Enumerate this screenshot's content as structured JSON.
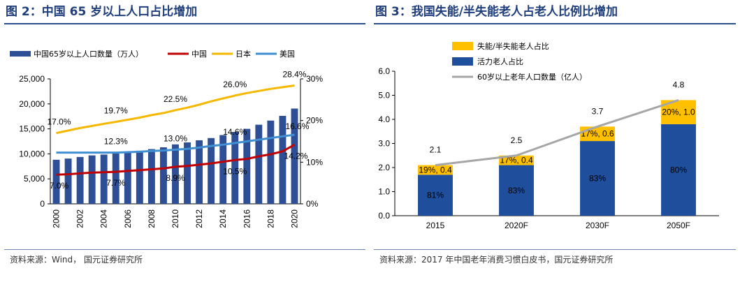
{
  "left_panel": {
    "title": "图 2：中国 65 岁以上人口占比增加",
    "source": "资料来源：Wind，   国元证券研究所",
    "chart_data": {
      "type": "bar+line",
      "legend": [
        {
          "name": "中国65岁以上人口数量（万人）",
          "kind": "bar",
          "color": "#2e4f96"
        },
        {
          "name": "中国",
          "kind": "line",
          "color": "#c00000"
        },
        {
          "name": "日本",
          "kind": "line",
          "color": "#f5b800"
        },
        {
          "name": "美国",
          "kind": "line",
          "color": "#3f8fd2"
        }
      ],
      "x": [
        2000,
        2001,
        2002,
        2003,
        2004,
        2005,
        2006,
        2007,
        2008,
        2009,
        2010,
        2011,
        2012,
        2013,
        2014,
        2015,
        2016,
        2017,
        2018,
        2019,
        2020
      ],
      "x_tick_labels": [
        "2000",
        "2002",
        "2004",
        "2006",
        "2008",
        "2010",
        "2012",
        "2014",
        "2016",
        "2018",
        "2020"
      ],
      "bar_values": [
        8821,
        9062,
        9377,
        9692,
        9857,
        10055,
        10419,
        10636,
        10956,
        11307,
        11894,
        12288,
        12714,
        13161,
        13755,
        14386,
        15003,
        15831,
        16658,
        17603,
        19064
      ],
      "y_left": {
        "ticks": [
          "0",
          "5,000",
          "10,000",
          "15,000",
          "20,000",
          "25,000"
        ],
        "range": [
          0,
          25000
        ]
      },
      "y_right": {
        "ticks": [
          "0%",
          "10%",
          "20%",
          "30%"
        ],
        "range": [
          0,
          30
        ]
      },
      "series": [
        {
          "name": "中国",
          "color": "#c00000",
          "values": [
            7.0,
            7.1,
            7.3,
            7.5,
            7.6,
            7.7,
            7.9,
            8.1,
            8.3,
            8.5,
            8.9,
            9.1,
            9.4,
            9.7,
            10.1,
            10.5,
            10.8,
            11.4,
            11.9,
            12.6,
            14.2
          ],
          "labels": [
            {
              "i": 0,
              "text": "7.0%"
            },
            {
              "i": 5,
              "text": "7.7%"
            },
            {
              "i": 10,
              "text": "8.9%"
            },
            {
              "i": 15,
              "text": "10.5%"
            },
            {
              "i": 20,
              "text": "14.2%"
            }
          ]
        },
        {
          "name": "日本",
          "color": "#f5b800",
          "values": [
            17.0,
            17.6,
            18.2,
            18.7,
            19.2,
            19.7,
            20.2,
            20.7,
            21.3,
            21.8,
            22.5,
            23.1,
            23.8,
            24.6,
            25.3,
            26.0,
            26.6,
            27.1,
            27.6,
            28.0,
            28.4
          ],
          "labels": [
            {
              "i": 0,
              "text": "17.0%"
            },
            {
              "i": 5,
              "text": "19.7%"
            },
            {
              "i": 10,
              "text": "22.5%"
            },
            {
              "i": 15,
              "text": "26.0%"
            },
            {
              "i": 20,
              "text": "28.4%"
            }
          ]
        },
        {
          "name": "美国",
          "color": "#3f8fd2",
          "values": [
            12.3,
            12.3,
            12.3,
            12.3,
            12.3,
            12.3,
            12.4,
            12.5,
            12.7,
            12.8,
            13.0,
            13.2,
            13.5,
            13.9,
            14.2,
            14.6,
            15.0,
            15.4,
            15.8,
            16.2,
            16.6
          ],
          "labels": [
            {
              "i": 5,
              "text": "12.3%"
            },
            {
              "i": 10,
              "text": "13.0%"
            },
            {
              "i": 15,
              "text": "14.6%"
            },
            {
              "i": 20,
              "text": "16.6%"
            }
          ]
        }
      ]
    }
  },
  "right_panel": {
    "title": "图 3：我国失能/半失能老人占老人比例比增加",
    "source": "资料来源：2017 年中国老年消费习惯白皮书，国元证券研究所",
    "chart_data": {
      "type": "stacked-bar+line",
      "legend": [
        {
          "name": "失能/半失能老人占比",
          "kind": "bar",
          "color": "#ffc000"
        },
        {
          "name": "活力老人占比",
          "kind": "bar",
          "color": "#1f4e9c"
        },
        {
          "name": "60岁以上老年人口数量（亿人）",
          "kind": "line",
          "color": "#a6a6a6"
        }
      ],
      "categories": [
        "2015",
        "2020F",
        "2030F",
        "2050F"
      ],
      "totals": [
        2.1,
        2.5,
        3.7,
        4.8
      ],
      "total_labels": [
        "2.1",
        "2.5",
        "3.7",
        "4.8"
      ],
      "bottom_pct_labels": [
        "81%",
        "83%",
        "83%",
        "80%"
      ],
      "top_labels": [
        "19%, 0.4",
        "17%, 0.4",
        "17%, 0.6",
        "20%, 1.0"
      ],
      "bottom_values": [
        1.7,
        2.1,
        3.1,
        3.8
      ],
      "top_values": [
        0.4,
        0.4,
        0.6,
        1.0
      ],
      "y": {
        "ticks": [
          "0.0",
          "1.0",
          "2.0",
          "3.0",
          "4.0",
          "5.0",
          "6.0"
        ],
        "range": [
          0,
          6
        ]
      }
    }
  }
}
